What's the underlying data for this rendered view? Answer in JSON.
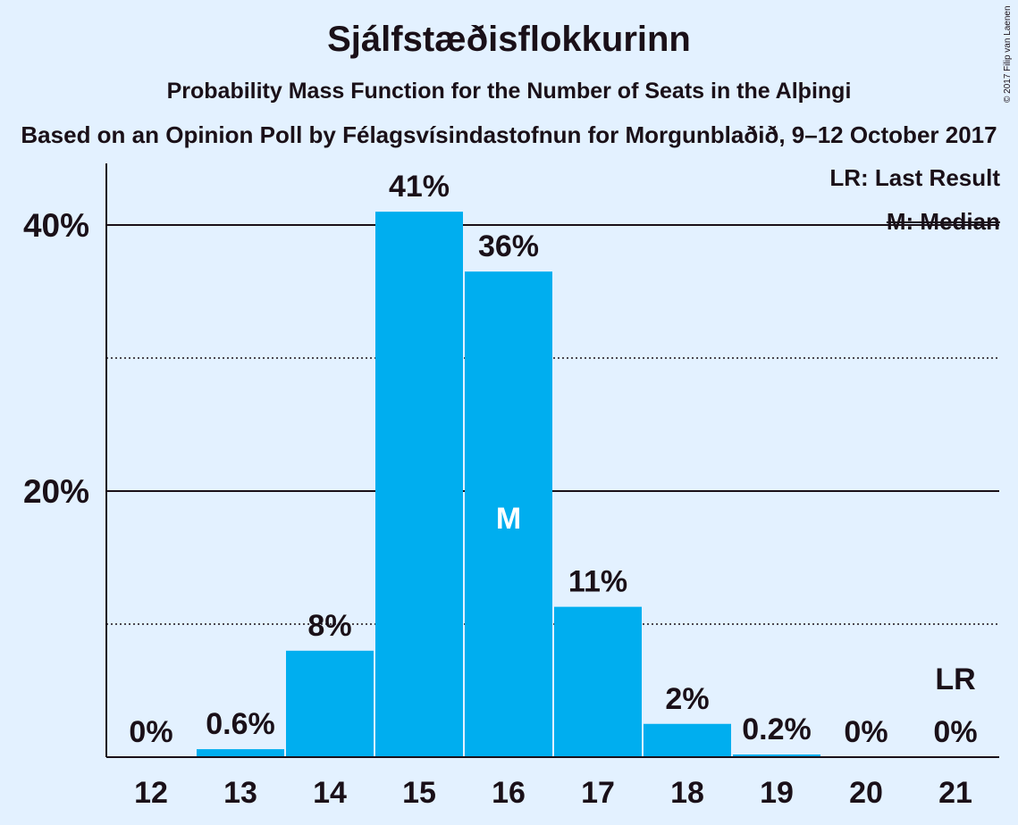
{
  "title": "Sjálfstæðisflokkurinn",
  "subtitle": "Probability Mass Function for the Number of Seats in the Alþingi",
  "source": "Based on an Opinion Poll by Félagsvísindastofnun for Morgunblaðið, 9–12 October 2017",
  "copyright": "© 2017 Filip van Laenen",
  "legend": {
    "last_result": "LR: Last Result",
    "median": "M: Median"
  },
  "colors": {
    "bar": "#00aeef",
    "background": "#e3f1ff",
    "text": "#1a1018"
  },
  "chart_data": {
    "type": "bar",
    "categories": [
      "12",
      "13",
      "14",
      "15",
      "16",
      "17",
      "18",
      "19",
      "20",
      "21"
    ],
    "values": [
      0,
      0.6,
      8,
      41,
      36.5,
      11.3,
      2.5,
      0.2,
      0,
      0
    ],
    "data_labels": [
      "0%",
      "0.6%",
      "8%",
      "41%",
      "36%",
      "11%",
      "2%",
      "0.2%",
      "0%",
      "0%"
    ],
    "ylim": [
      0,
      45
    ],
    "y_ticks": [
      {
        "value": 20,
        "label": "20%",
        "style": "solid"
      },
      {
        "value": 40,
        "label": "40%",
        "style": "solid"
      }
    ],
    "y_minor_gridlines": [
      10,
      30
    ],
    "median_seat": "16",
    "median_marker": "M",
    "last_result_seat": "21",
    "last_result_marker": "LR",
    "xlabel": "",
    "ylabel": "",
    "grid": true,
    "legend_placement": "top-right"
  }
}
